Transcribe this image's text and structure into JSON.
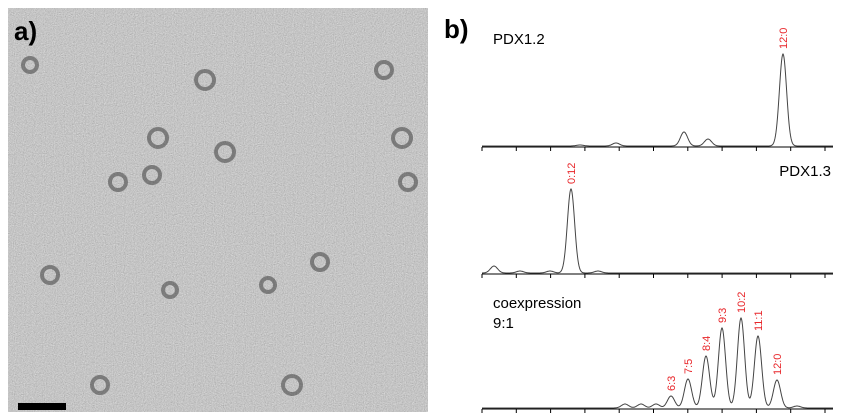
{
  "panel_a": {
    "label": "a)"
  },
  "panel_b": {
    "label": "b)",
    "plots": [
      {
        "title_lines": [
          "PDX1.2"
        ],
        "peak_labels": [
          "12:0"
        ]
      },
      {
        "title_lines": [
          "PDX1.3"
        ],
        "peak_labels": [
          "0:12"
        ]
      },
      {
        "title_lines": [
          "coexpression",
          "9:1"
        ],
        "peak_labels": [
          "6:3",
          "7:5",
          "8:4",
          "9:3",
          "10:2",
          "11:1",
          "12:0"
        ]
      }
    ]
  }
}
